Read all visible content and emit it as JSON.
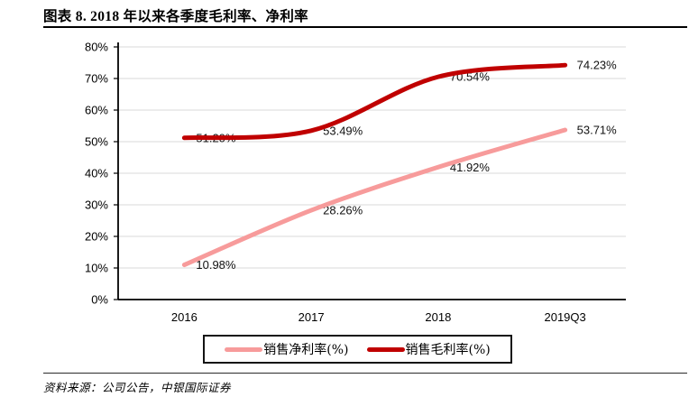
{
  "header": {
    "figure_label": "图表 8. 2018 年以来各季度毛利率、净利率"
  },
  "footer": {
    "source": "资料来源：公司公告，中银国际证券"
  },
  "chart_data": {
    "type": "line",
    "title": "图表 8. 2018 年以来各季度毛利率、净利率",
    "categories": [
      "2016",
      "2017",
      "2018",
      "2019Q3"
    ],
    "series": [
      {
        "id": "net_margin",
        "name": "销售净利率(%)",
        "color": "#F79B9B",
        "values": [
          10.98,
          28.26,
          41.92,
          53.71
        ],
        "point_labels": [
          "10.98%",
          "28.26%",
          "41.92%",
          "53.71%"
        ]
      },
      {
        "id": "gross_margin",
        "name": "销售毛利率(%)",
        "color": "#C00000",
        "values": [
          51.2,
          53.49,
          70.54,
          74.23
        ],
        "point_labels": [
          "51.20%",
          "53.49%",
          "70.54%",
          "74.23%"
        ]
      }
    ],
    "ylim": [
      0,
      80
    ],
    "ytick_step": 10,
    "ytick_labels": [
      "0%",
      "10%",
      "20%",
      "30%",
      "40%",
      "50%",
      "60%",
      "70%",
      "80%"
    ],
    "xlabel": "",
    "ylabel": "",
    "grid": true,
    "smooth": true,
    "legend_position": "bottom"
  }
}
